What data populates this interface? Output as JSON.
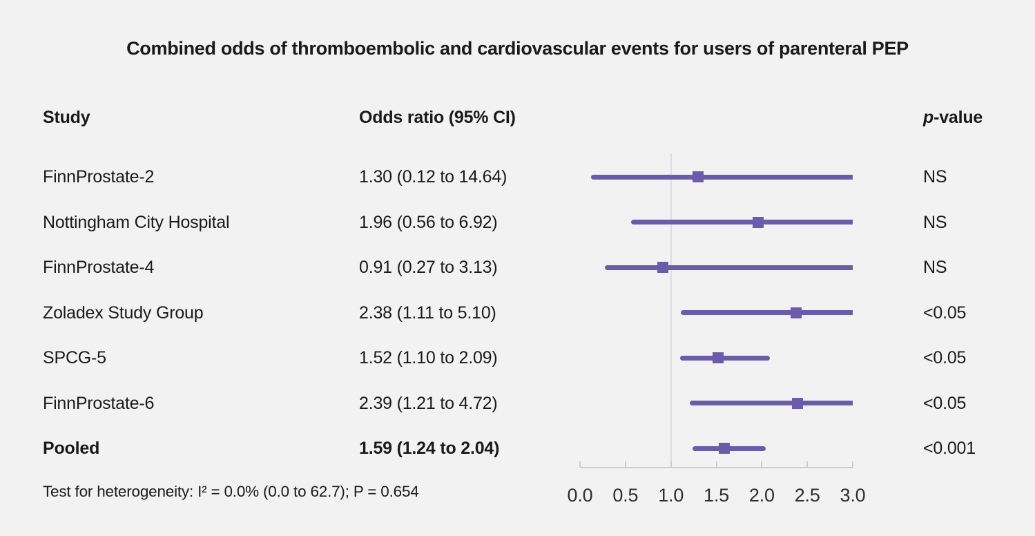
{
  "title": "Combined odds of thromboembolic and cardiovascular events for users of parenteral PEP",
  "columns": {
    "study": "Study",
    "odds_ratio": "Odds ratio (95% CI)",
    "p_italic": "p",
    "p_rest": "-value"
  },
  "footnote": "Test for heterogeneity: I² = 0.0% (0.0 to 62.7); P = 0.654",
  "colors": {
    "background": "#f2f2f2",
    "marker_purple": "#6b5caa",
    "reference_line": "#d9dee4",
    "axis": "#c7cdd4",
    "text": "#1a1a1a"
  },
  "chart_data": {
    "type": "forest",
    "title": "Combined odds of thromboembolic and cardiovascular events for users of parenteral PEP",
    "xlabel": "",
    "ylabel": "",
    "xlim": [
      0,
      3
    ],
    "reference_value": 1.0,
    "x_ticks": [
      "0.0",
      "0.5",
      "1.0",
      "1.5",
      "2.0",
      "2.5",
      "3.0"
    ],
    "rows": [
      {
        "study": "FinnProstate-2",
        "or": 1.3,
        "ci_low": 0.12,
        "ci_high": 14.64,
        "label": "1.30 (0.12 to 14.64)",
        "p": "NS",
        "bold": false
      },
      {
        "study": "Nottingham City Hospital",
        "or": 1.96,
        "ci_low": 0.56,
        "ci_high": 6.92,
        "label": "1.96 (0.56 to 6.92)",
        "p": "NS",
        "bold": false
      },
      {
        "study": "FinnProstate-4",
        "or": 0.91,
        "ci_low": 0.27,
        "ci_high": 3.13,
        "label": "0.91 (0.27 to 3.13)",
        "p": "NS",
        "bold": false
      },
      {
        "study": "Zoladex Study Group",
        "or": 2.38,
        "ci_low": 1.11,
        "ci_high": 5.1,
        "label": "2.38 (1.11 to 5.10)",
        "p": "<0.05",
        "bold": false
      },
      {
        "study": "SPCG-5",
        "or": 1.52,
        "ci_low": 1.1,
        "ci_high": 2.09,
        "label": "1.52 (1.10 to 2.09)",
        "p": "<0.05",
        "bold": false
      },
      {
        "study": "FinnProstate-6",
        "or": 2.39,
        "ci_low": 1.21,
        "ci_high": 4.72,
        "label": "2.39 (1.21 to 4.72)",
        "p": "<0.05",
        "bold": false
      },
      {
        "study": "Pooled",
        "or": 1.59,
        "ci_low": 1.24,
        "ci_high": 2.04,
        "label": "1.59 (1.24 to 2.04)",
        "p": "<0.001",
        "bold": true
      }
    ]
  }
}
